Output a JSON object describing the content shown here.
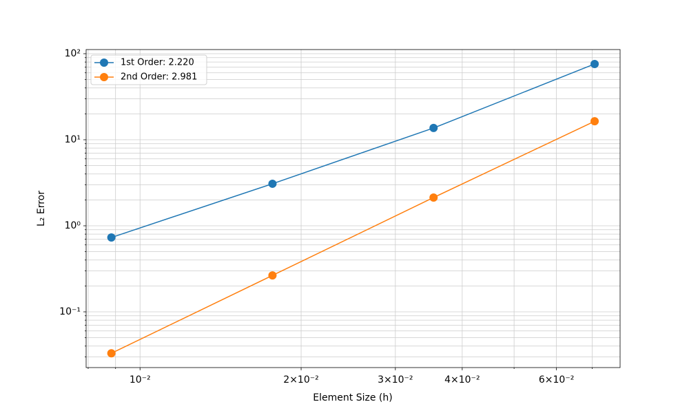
{
  "chart_data": {
    "type": "line",
    "log_x": true,
    "log_y": true,
    "grid": true,
    "legend": "upper left",
    "xlabel": "Element Size (h)",
    "ylabel": "L₂ Error",
    "xlim": [
      0.00793,
      0.0789
    ],
    "ylim": [
      0.0225,
      111.7
    ],
    "xticks": [
      {
        "value": 0.01,
        "label": "10⁻²"
      },
      {
        "value": 0.02,
        "label": "2×10⁻²"
      },
      {
        "value": 0.03,
        "label": "3×10⁻²"
      },
      {
        "value": 0.04,
        "label": "4×10⁻²"
      },
      {
        "value": 0.06,
        "label": "6×10⁻²"
      }
    ],
    "xminorticks": [
      0.008,
      0.009,
      0.05,
      0.07
    ],
    "yticks": [
      {
        "value": 0.1,
        "label": "10⁻¹"
      },
      {
        "value": 1,
        "label": "10⁰"
      },
      {
        "value": 10,
        "label": "10¹"
      },
      {
        "value": 100,
        "label": "10²"
      }
    ],
    "yminorticks": [
      0.03,
      0.04,
      0.05,
      0.06,
      0.07,
      0.08,
      0.09,
      0.2,
      0.3,
      0.4,
      0.5,
      0.6,
      0.7,
      0.8,
      0.9,
      2,
      3,
      4,
      5,
      6,
      7,
      8,
      9,
      20,
      30,
      40,
      50,
      60,
      70,
      80,
      90
    ],
    "x": [
      0.00884,
      0.01768,
      0.03536,
      0.07071
    ],
    "series": [
      {
        "name": "1st Order: 2.220",
        "color": "#1f77b4",
        "values": [
          0.731,
          3.08,
          13.7,
          75.9
        ]
      },
      {
        "name": "2nd Order: 2.981",
        "color": "#ff7f0e",
        "values": [
          0.033,
          0.265,
          2.13,
          16.4
        ]
      }
    ]
  }
}
